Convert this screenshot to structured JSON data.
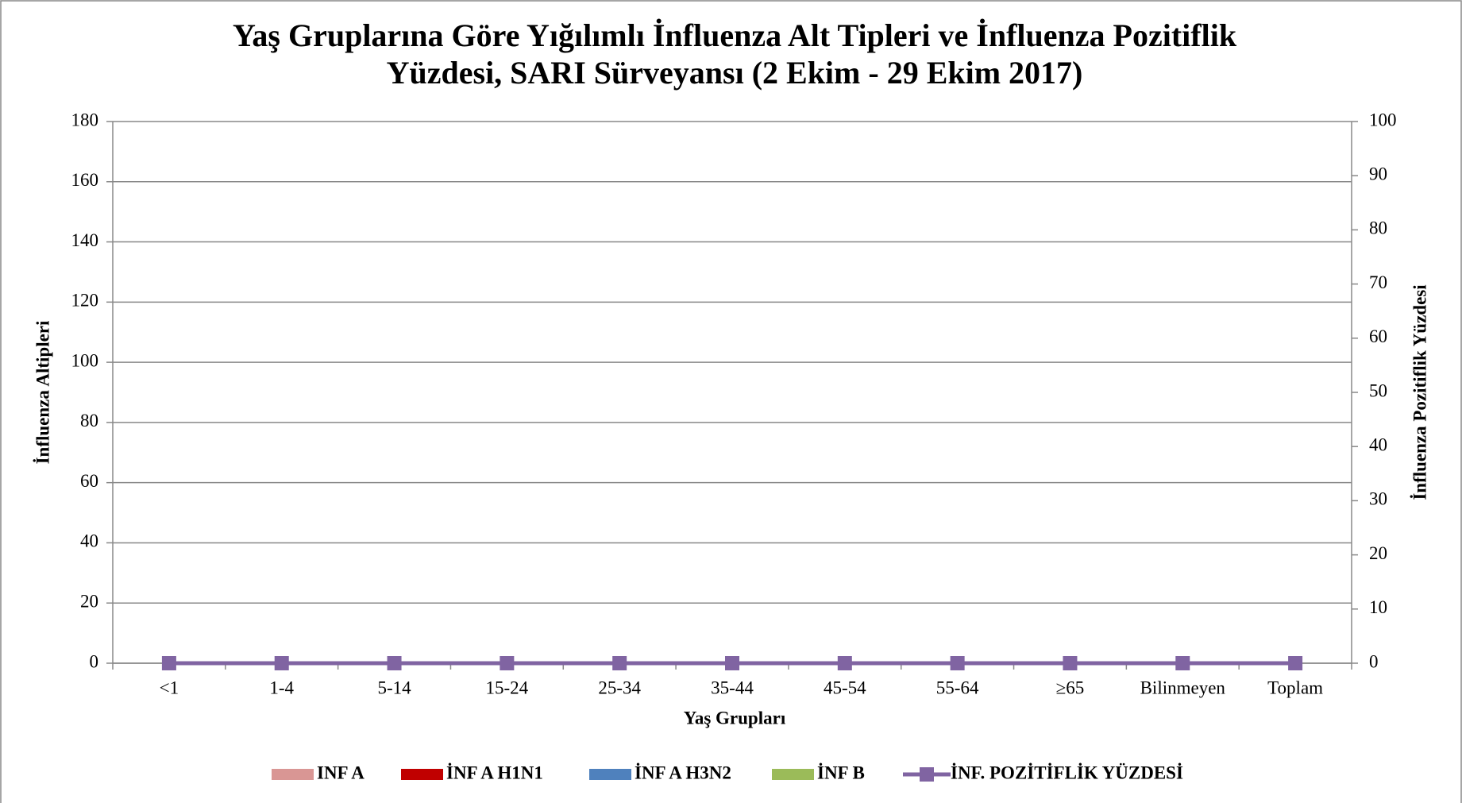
{
  "chart_data": {
    "type": "bar",
    "title": [
      "Yaş Gruplarına Göre  Yığılımlı İnfluenza Alt Tipleri ve İnfluenza Pozitiflik",
      "Yüzdesi, SARI Sürveyansı (2 Ekim - 29 Ekim 2017)"
    ],
    "x_label": "Yaş Grupları",
    "y_label": "İnfluenza Altipleri",
    "y2_label": "İnfluenza Pozitiflik Yüzdesi",
    "stacked": true,
    "grid": true,
    "legend": "bottom",
    "categories": [
      "<1",
      "1-4",
      "5-14",
      "15-24",
      "25-34",
      "35-44",
      "45-54",
      "55-64",
      "≥65",
      "Bilinmeyen",
      "Toplam"
    ],
    "series": [
      {
        "name": "INF A",
        "color": "#d99694",
        "type": "bar",
        "values": [
          0,
          0,
          0,
          0,
          0,
          0,
          0,
          0,
          0,
          0,
          0
        ]
      },
      {
        "name": "İNF A H1N1",
        "color": "#c00000",
        "type": "bar",
        "values": [
          0,
          0,
          0,
          0,
          0,
          0,
          0,
          0,
          0,
          0,
          0
        ]
      },
      {
        "name": "İNF A H3N2",
        "color": "#4f81bd",
        "type": "bar",
        "values": [
          0,
          0,
          0,
          0,
          0,
          0,
          0,
          0,
          0,
          0,
          0
        ]
      },
      {
        "name": "İNF B",
        "color": "#9bbb59",
        "type": "bar",
        "values": [
          0,
          0,
          0,
          0,
          0,
          0,
          0,
          0,
          0,
          0,
          0
        ]
      },
      {
        "name": "İNF. POZİTİFLİK YÜZDESİ",
        "color": "#8064a2",
        "type": "line",
        "axis": "y2",
        "values": [
          0,
          0,
          0,
          0,
          0,
          0,
          0,
          0,
          0,
          0,
          0
        ]
      }
    ],
    "ylim": [
      0,
      180
    ],
    "yticks": [
      0,
      20,
      40,
      60,
      80,
      100,
      120,
      140,
      160,
      180
    ],
    "y2lim": [
      0,
      100
    ],
    "y2ticks": [
      0,
      10,
      20,
      30,
      40,
      50,
      60,
      70,
      80,
      90,
      100
    ]
  }
}
